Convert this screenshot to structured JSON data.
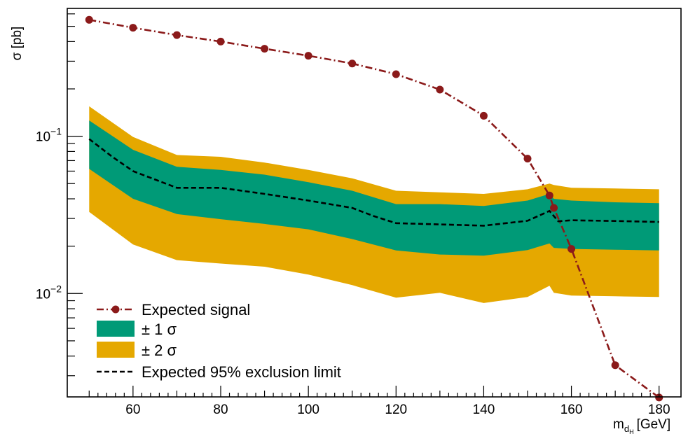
{
  "chart_data": {
    "type": "line",
    "x_axis": {
      "label_main": "m",
      "label_sub": "d",
      "label_subsub": "H",
      "label_unit": "[GeV]",
      "range": [
        45,
        185
      ],
      "ticks": [
        60,
        80,
        100,
        120,
        140,
        160,
        180
      ],
      "tick_labels": [
        "60",
        "80",
        "100",
        "120",
        "140",
        "160",
        "180"
      ]
    },
    "y_axis": {
      "label": "σ [pb]",
      "scale": "log",
      "range": [
        0.0022,
        0.65
      ],
      "major_ticks": [
        {
          "value": 0.1,
          "base": "10",
          "exp": "−1"
        },
        {
          "value": 0.01,
          "base": "10",
          "exp": "−2"
        }
      ]
    },
    "series": {
      "signal": {
        "name": "Expected signal",
        "color": "#8b1a1a",
        "x": [
          50,
          60,
          70,
          80,
          90,
          100,
          110,
          120,
          130,
          140,
          150,
          155,
          156,
          160,
          170,
          180
        ],
        "y": [
          0.55,
          0.49,
          0.44,
          0.4,
          0.36,
          0.325,
          0.29,
          0.248,
          0.198,
          0.135,
          0.072,
          0.042,
          0.035,
          0.0192,
          0.0035,
          0.00218
        ]
      },
      "band_2sigma": {
        "name": "± 2 σ",
        "color": "#e5a800",
        "x": [
          50,
          60,
          70,
          80,
          90,
          100,
          110,
          120,
          130,
          140,
          150,
          155,
          156,
          160,
          170,
          180
        ],
        "upper": [
          0.155,
          0.099,
          0.076,
          0.074,
          0.068,
          0.061,
          0.054,
          0.045,
          0.044,
          0.043,
          0.046,
          0.05,
          0.049,
          0.047,
          0.0465,
          0.046
        ],
        "lower": [
          0.033,
          0.0205,
          0.0163,
          0.0155,
          0.0148,
          0.0132,
          0.0113,
          0.0094,
          0.0101,
          0.0087,
          0.0095,
          0.0112,
          0.0101,
          0.0097,
          0.0096,
          0.0095
        ]
      },
      "band_1sigma": {
        "name": "± 1 σ",
        "color": "#009a77",
        "x": [
          50,
          60,
          70,
          80,
          90,
          100,
          110,
          120,
          130,
          140,
          150,
          155,
          156,
          160,
          170,
          180
        ],
        "upper": [
          0.126,
          0.082,
          0.064,
          0.061,
          0.057,
          0.051,
          0.045,
          0.037,
          0.037,
          0.036,
          0.039,
          0.043,
          0.04,
          0.039,
          0.038,
          0.0375
        ],
        "lower": [
          0.062,
          0.04,
          0.032,
          0.0297,
          0.0277,
          0.0256,
          0.0222,
          0.0188,
          0.0177,
          0.0174,
          0.0189,
          0.0208,
          0.0195,
          0.0192,
          0.019,
          0.0188
        ]
      },
      "limit": {
        "name": "Expected 95% exclusion limit",
        "color": "#000000",
        "x": [
          50,
          55,
          60,
          70,
          80,
          90,
          100,
          110,
          115,
          120,
          130,
          140,
          150,
          155,
          157,
          160,
          170,
          180
        ],
        "y": [
          0.096,
          0.075,
          0.06,
          0.047,
          0.047,
          0.043,
          0.039,
          0.035,
          0.031,
          0.028,
          0.0275,
          0.027,
          0.029,
          0.0335,
          0.0288,
          0.0292,
          0.0289,
          0.0285
        ]
      }
    },
    "legend": {
      "placement": "bottom-left",
      "entries": [
        "Expected signal",
        "± 1 σ",
        "± 2 σ",
        "Expected 95% exclusion limit"
      ]
    },
    "grid": false
  }
}
